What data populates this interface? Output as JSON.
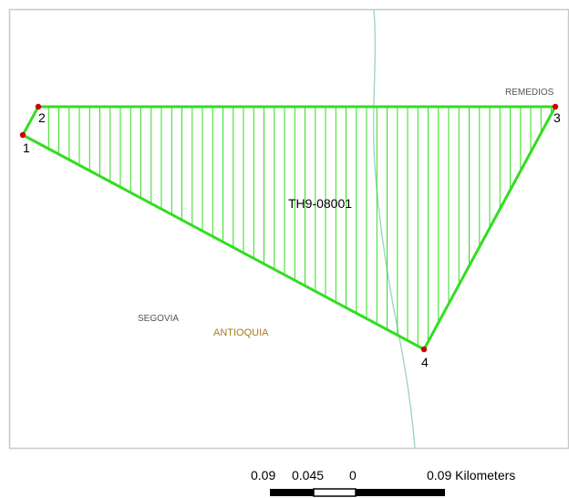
{
  "map": {
    "polygon_label": "TH9-08001",
    "vertices": [
      {
        "label": "1"
      },
      {
        "label": "2"
      },
      {
        "label": "3"
      },
      {
        "label": "4"
      }
    ],
    "place_labels": {
      "remedios": "REMEDIOS",
      "segovia": "SEGOVIA",
      "antioquia": "ANTIOQUIA"
    },
    "colors": {
      "polygon_outline": "#33dd22",
      "polygon_hatch": "#33dd22",
      "vertex_marker": "#cc0000",
      "river": "#9fd6c8",
      "frame_border": "#c8c8c8",
      "department_label": "#a67a1e",
      "municipality_label": "#555555"
    }
  },
  "scalebar": {
    "labels": [
      "0.09",
      "0.045",
      "0",
      "0.09 Kilometers"
    ]
  }
}
